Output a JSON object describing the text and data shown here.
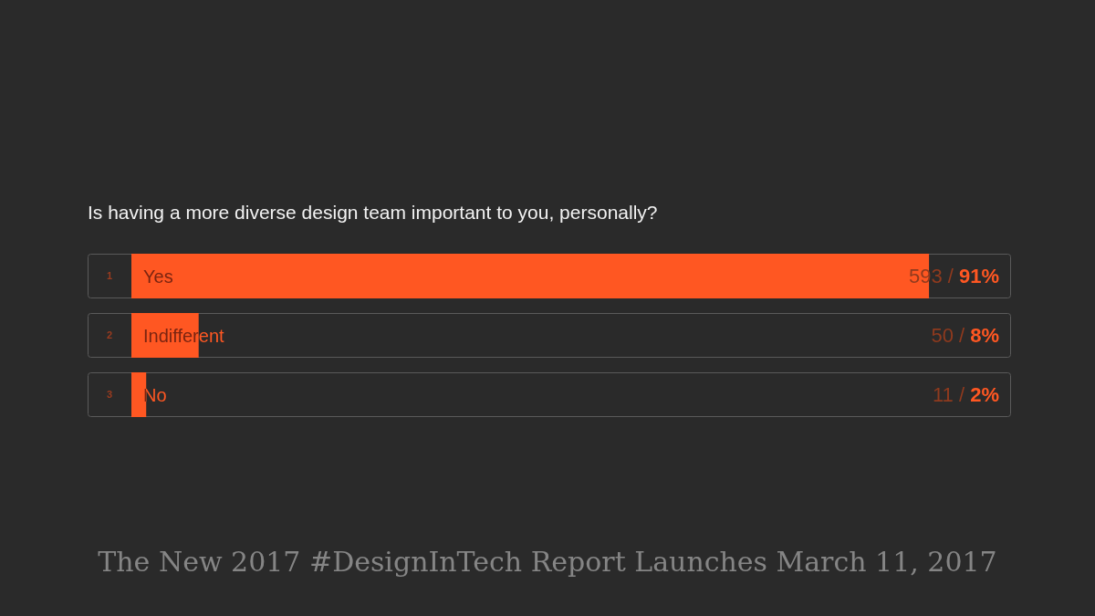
{
  "chart_data": {
    "type": "bar",
    "orientation": "horizontal",
    "title": "Is having a more diverse design team important to you, personally?",
    "categories": [
      "Yes",
      "Indifferent",
      "No"
    ],
    "y2_categories": [
      "1",
      "2",
      "3"
    ],
    "values": [
      593,
      50,
      11
    ],
    "color": "#ff5722",
    "tick_labels": "y",
    "value_labels": [
      "593 / 91%",
      "50 / 8%",
      "11 / 2%"
    ],
    "annotations": [
      "The New 2017 #DesignInTech Report Launches March 11, 2017"
    ]
  }
}
